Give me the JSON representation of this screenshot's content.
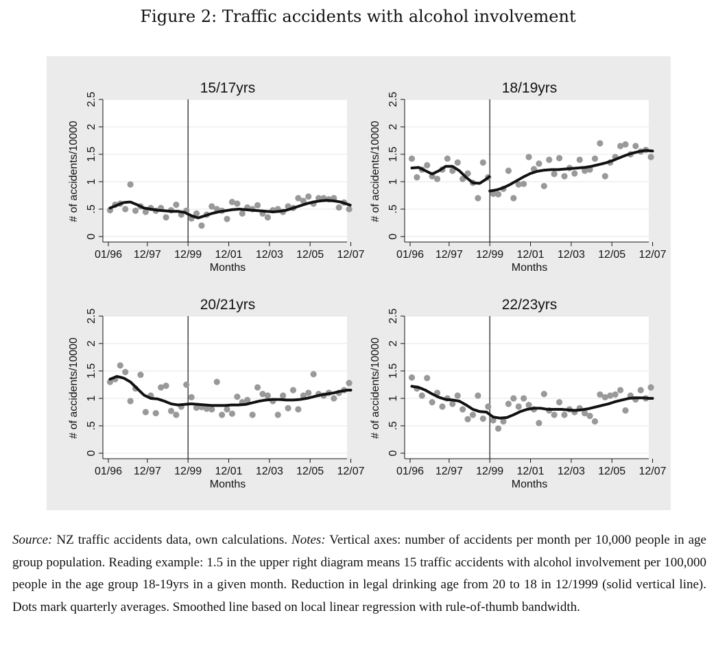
{
  "figure_title": "Figure 2: Traffic accidents with alcohol involvement",
  "colors": {
    "panel_bg": "#ebebeb",
    "plot_bg": "#ffffff",
    "dots": "#999999",
    "line": "#111111",
    "grid": "#e4e4e4"
  },
  "notes": {
    "source_label": "Source:",
    "source_text": " NZ traffic accidents data, own calculations. ",
    "notes_label": "Notes:",
    "notes_text": " Vertical axes: number of accidents per month per 10,000 people in age group population. Reading example: 1.5 in the upper right diagram means 15 traffic accidents with alcohol involvement per 100,000 people in the age group 18-19yrs in a given month. Reduction in legal drinking age from 20 to 18 in 12/1999 (solid vertical line). Dots mark quarterly averages. Smoothed line based on local linear regression with rule-of-thumb bandwidth."
  },
  "chart_data": [
    {
      "type": "scatter",
      "title": "15/17yrs",
      "xlabel": "Months",
      "ylabel": "# of accidents/10000",
      "xlim": [
        0,
        144
      ],
      "ylim": [
        0,
        2.5
      ],
      "x_ticks": [
        0,
        23,
        47,
        71,
        95,
        119,
        143
      ],
      "x_tick_labels": [
        "01/96",
        "12/97",
        "12/99",
        "12/01",
        "12/03",
        "12/05",
        "12/07"
      ],
      "y_ticks": [
        0,
        0.5,
        1,
        1.5,
        2,
        2.5
      ],
      "y_tick_labels": [
        "0",
        ".5",
        "1",
        "1.5",
        "2",
        "2.5"
      ],
      "vline": 47,
      "grid": true,
      "series": [
        {
          "kind": "dots",
          "x": [
            1,
            4,
            7,
            10,
            13,
            16,
            19,
            22,
            25,
            28,
            31,
            34,
            37,
            40,
            43,
            46,
            49,
            52,
            55,
            58,
            61,
            64,
            67,
            70,
            73,
            76,
            79,
            82,
            85,
            88,
            91,
            94,
            97,
            100,
            103,
            106,
            109,
            112,
            115,
            118,
            121,
            124,
            127,
            130,
            133,
            136,
            139,
            142
          ],
          "y": [
            0.48,
            0.58,
            0.6,
            0.5,
            0.95,
            0.47,
            0.55,
            0.45,
            0.52,
            0.47,
            0.52,
            0.35,
            0.48,
            0.58,
            0.4,
            0.47,
            0.33,
            0.42,
            0.2,
            0.4,
            0.55,
            0.5,
            0.47,
            0.32,
            0.63,
            0.6,
            0.42,
            0.53,
            0.5,
            0.57,
            0.42,
            0.35,
            0.48,
            0.5,
            0.45,
            0.55,
            0.52,
            0.7,
            0.65,
            0.73,
            0.6,
            0.7,
            0.7,
            0.68,
            0.7,
            0.53,
            0.62,
            0.5
          ]
        },
        {
          "kind": "line",
          "x": [
            1,
            5,
            9,
            13,
            17,
            21,
            25,
            29,
            33,
            37,
            41,
            45,
            49,
            53,
            57,
            61,
            65,
            69,
            73,
            77,
            81,
            85,
            89,
            93,
            97,
            101,
            105,
            109,
            113,
            117,
            121,
            125,
            129,
            133,
            137,
            141,
            143
          ],
          "y": [
            0.52,
            0.57,
            0.62,
            0.63,
            0.58,
            0.52,
            0.5,
            0.48,
            0.47,
            0.46,
            0.46,
            0.44,
            0.38,
            0.34,
            0.38,
            0.42,
            0.45,
            0.47,
            0.49,
            0.5,
            0.49,
            0.48,
            0.47,
            0.46,
            0.45,
            0.46,
            0.48,
            0.52,
            0.56,
            0.6,
            0.63,
            0.65,
            0.66,
            0.65,
            0.63,
            0.59,
            0.57
          ]
        }
      ]
    },
    {
      "type": "scatter",
      "title": "18/19yrs",
      "xlabel": "Months",
      "ylabel": "# of accidents/10000",
      "xlim": [
        0,
        144
      ],
      "ylim": [
        0,
        2.5
      ],
      "x_ticks": [
        0,
        23,
        47,
        71,
        95,
        119,
        143
      ],
      "x_tick_labels": [
        "01/96",
        "12/97",
        "12/99",
        "12/01",
        "12/03",
        "12/05",
        "12/07"
      ],
      "y_ticks": [
        0,
        0.5,
        1,
        1.5,
        2,
        2.5
      ],
      "y_tick_labels": [
        "0",
        ".5",
        "1",
        "1.5",
        "2",
        "2.5"
      ],
      "vline": 47,
      "grid": true,
      "series": [
        {
          "kind": "dots",
          "x": [
            1,
            4,
            7,
            10,
            13,
            16,
            19,
            22,
            25,
            28,
            31,
            34,
            37,
            40,
            43,
            46,
            49,
            52,
            55,
            58,
            61,
            64,
            67,
            70,
            73,
            76,
            79,
            82,
            85,
            88,
            91,
            94,
            97,
            100,
            103,
            106,
            109,
            112,
            115,
            118,
            121,
            124,
            127,
            130,
            133,
            136,
            139,
            142
          ],
          "y": [
            1.42,
            1.08,
            1.22,
            1.3,
            1.1,
            1.05,
            1.22,
            1.42,
            1.2,
            1.35,
            1.05,
            1.15,
            0.98,
            0.7,
            1.35,
            1.08,
            0.78,
            0.77,
            0.87,
            1.2,
            0.7,
            0.95,
            0.96,
            1.45,
            1.23,
            1.33,
            0.92,
            1.4,
            1.14,
            1.43,
            1.1,
            1.25,
            1.15,
            1.4,
            1.2,
            1.22,
            1.42,
            1.7,
            1.1,
            1.35,
            1.45,
            1.65,
            1.68,
            1.5,
            1.65,
            1.55,
            1.58,
            1.45
          ]
        },
        {
          "kind": "line",
          "x": [
            1,
            5,
            9,
            13,
            17,
            21,
            25,
            29,
            33,
            37,
            41,
            45,
            47
          ],
          "y": [
            1.25,
            1.26,
            1.2,
            1.14,
            1.2,
            1.28,
            1.28,
            1.2,
            1.08,
            0.98,
            0.97,
            1.05,
            1.1
          ]
        },
        {
          "kind": "line",
          "x": [
            47,
            51,
            55,
            59,
            63,
            67,
            71,
            75,
            79,
            83,
            87,
            91,
            95,
            99,
            103,
            107,
            111,
            115,
            119,
            123,
            127,
            131,
            135,
            139,
            143
          ],
          "y": [
            0.83,
            0.85,
            0.89,
            0.95,
            1.02,
            1.09,
            1.15,
            1.19,
            1.21,
            1.22,
            1.22,
            1.23,
            1.24,
            1.25,
            1.26,
            1.28,
            1.31,
            1.34,
            1.38,
            1.43,
            1.48,
            1.52,
            1.55,
            1.57,
            1.56
          ]
        }
      ]
    },
    {
      "type": "scatter",
      "title": "20/21yrs",
      "xlabel": "Months",
      "ylabel": "# of accidents/10000",
      "xlim": [
        0,
        144
      ],
      "ylim": [
        0,
        2.5
      ],
      "x_ticks": [
        0,
        23,
        47,
        71,
        95,
        119,
        143
      ],
      "x_tick_labels": [
        "01/96",
        "12/97",
        "12/99",
        "12/01",
        "12/03",
        "12/05",
        "12/07"
      ],
      "y_ticks": [
        0,
        0.5,
        1,
        1.5,
        2,
        2.5
      ],
      "y_tick_labels": [
        "0",
        ".5",
        "1",
        "1.5",
        "2",
        "2.5"
      ],
      "vline": 47,
      "grid": true,
      "series": [
        {
          "kind": "dots",
          "x": [
            1,
            4,
            7,
            10,
            13,
            16,
            19,
            22,
            25,
            28,
            31,
            34,
            37,
            40,
            43,
            46,
            49,
            52,
            55,
            58,
            61,
            64,
            67,
            70,
            73,
            76,
            79,
            82,
            85,
            88,
            91,
            94,
            97,
            100,
            103,
            106,
            109,
            112,
            115,
            118,
            121,
            124,
            127,
            130,
            133,
            136,
            139,
            142
          ],
          "y": [
            1.3,
            1.35,
            1.6,
            1.48,
            0.95,
            1.18,
            1.43,
            0.75,
            1.05,
            0.73,
            1.2,
            1.23,
            0.77,
            0.7,
            0.85,
            1.25,
            1.02,
            0.83,
            0.84,
            0.81,
            0.8,
            1.3,
            0.7,
            0.8,
            0.72,
            1.03,
            0.93,
            0.97,
            0.7,
            1.2,
            1.08,
            1.05,
            0.95,
            0.7,
            1.05,
            0.82,
            1.15,
            0.8,
            1.05,
            1.1,
            1.44,
            1.08,
            1.05,
            1.1,
            1.0,
            1.1,
            1.15,
            1.28
          ]
        },
        {
          "kind": "line",
          "x": [
            1,
            5,
            9,
            13,
            17,
            21,
            25,
            29,
            33,
            37,
            41,
            45,
            49,
            53,
            57,
            61,
            65,
            69,
            73,
            77,
            81,
            85,
            89,
            93,
            97,
            101,
            105,
            109,
            113,
            117,
            121,
            125,
            129,
            133,
            137,
            141,
            143
          ],
          "y": [
            1.35,
            1.4,
            1.37,
            1.3,
            1.18,
            1.06,
            1.0,
            0.99,
            0.95,
            0.9,
            0.88,
            0.89,
            0.9,
            0.89,
            0.88,
            0.87,
            0.87,
            0.87,
            0.88,
            0.88,
            0.89,
            0.92,
            0.95,
            0.97,
            0.98,
            0.98,
            0.97,
            0.97,
            0.98,
            1.0,
            1.03,
            1.06,
            1.08,
            1.1,
            1.13,
            1.15,
            1.15
          ]
        }
      ]
    },
    {
      "type": "scatter",
      "title": "22/23yrs",
      "xlabel": "Months",
      "ylabel": "# of accidents/10000",
      "xlim": [
        0,
        144
      ],
      "ylim": [
        0,
        2.5
      ],
      "x_ticks": [
        0,
        23,
        47,
        71,
        95,
        119,
        143
      ],
      "x_tick_labels": [
        "01/96",
        "12/97",
        "12/99",
        "12/01",
        "12/03",
        "12/05",
        "12/07"
      ],
      "y_ticks": [
        0,
        0.5,
        1,
        1.5,
        2,
        2.5
      ],
      "y_tick_labels": [
        "0",
        ".5",
        "1",
        "1.5",
        "2",
        "2.5"
      ],
      "vline": 47,
      "grid": true,
      "series": [
        {
          "kind": "dots",
          "x": [
            1,
            4,
            7,
            10,
            13,
            16,
            19,
            22,
            25,
            28,
            31,
            34,
            37,
            40,
            43,
            46,
            49,
            52,
            55,
            58,
            61,
            64,
            67,
            70,
            73,
            76,
            79,
            82,
            85,
            88,
            91,
            94,
            97,
            100,
            103,
            106,
            109,
            112,
            115,
            118,
            121,
            124,
            127,
            130,
            133,
            136,
            139,
            142
          ],
          "y": [
            1.38,
            1.18,
            1.05,
            1.37,
            0.93,
            1.1,
            0.85,
            1.0,
            0.9,
            1.05,
            0.8,
            0.62,
            0.7,
            1.05,
            0.63,
            0.85,
            0.6,
            0.45,
            0.58,
            0.9,
            1.0,
            0.85,
            1.0,
            0.88,
            0.8,
            0.55,
            1.08,
            0.78,
            0.7,
            0.93,
            0.7,
            0.8,
            0.75,
            0.82,
            0.73,
            0.68,
            0.58,
            1.07,
            1.02,
            1.05,
            1.07,
            1.15,
            0.78,
            1.05,
            0.98,
            1.15,
            1.0,
            1.2
          ]
        },
        {
          "kind": "line",
          "x": [
            1,
            5,
            9,
            13,
            17,
            21,
            25,
            29,
            33,
            37,
            41,
            45,
            49,
            53,
            57,
            61,
            65,
            69,
            73,
            77,
            81,
            85,
            89,
            93,
            97,
            101,
            105,
            109,
            113,
            117,
            121,
            125,
            129,
            133,
            137,
            141,
            143
          ],
          "y": [
            1.22,
            1.2,
            1.15,
            1.08,
            1.02,
            0.98,
            0.97,
            0.95,
            0.88,
            0.8,
            0.76,
            0.75,
            0.66,
            0.64,
            0.65,
            0.7,
            0.76,
            0.8,
            0.82,
            0.82,
            0.8,
            0.8,
            0.8,
            0.79,
            0.78,
            0.79,
            0.81,
            0.84,
            0.87,
            0.9,
            0.94,
            0.97,
            1.0,
            1.01,
            1.01,
            1.0,
            1.0
          ]
        }
      ]
    }
  ]
}
